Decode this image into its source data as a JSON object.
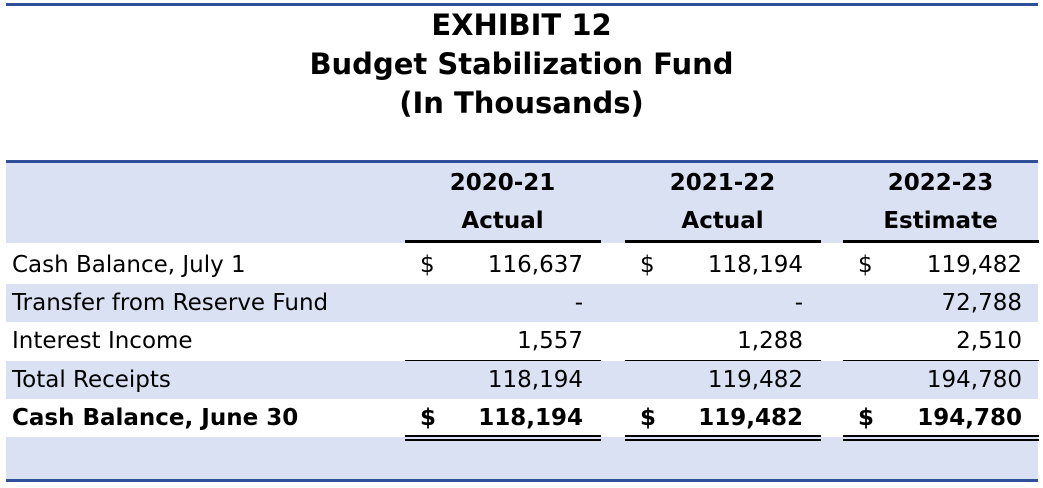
{
  "header": {
    "title": "EXHIBIT 12",
    "subtitle": "Budget Stabilization Fund",
    "units": "(In Thousands)"
  },
  "table": {
    "columns": [
      {
        "year": "2020-21",
        "basis": "Actual"
      },
      {
        "year": "2021-22",
        "basis": "Actual"
      },
      {
        "year": "2022-23",
        "basis": "Estimate"
      }
    ],
    "rows": [
      {
        "label": "Cash Balance, July 1",
        "cells": [
          {
            "symbol": "$",
            "value": "116,637"
          },
          {
            "symbol": "$",
            "value": "118,194"
          },
          {
            "symbol": "$",
            "value": "119,482"
          }
        ]
      },
      {
        "label": "Transfer from Reserve Fund",
        "cells": [
          {
            "value": "-"
          },
          {
            "value": "-"
          },
          {
            "value": "72,788"
          }
        ]
      },
      {
        "label": "Interest Income",
        "cells": [
          {
            "value": "1,557"
          },
          {
            "value": "1,288"
          },
          {
            "value": "2,510"
          }
        ]
      },
      {
        "label": "Total Receipts",
        "cells": [
          {
            "value": "118,194"
          },
          {
            "value": "119,482"
          },
          {
            "value": "194,780"
          }
        ]
      },
      {
        "label": "Cash Balance, June 30",
        "cells": [
          {
            "symbol": "$",
            "value": "118,194"
          },
          {
            "symbol": "$",
            "value": "119,482"
          },
          {
            "symbol": "$",
            "value": "194,780"
          }
        ]
      }
    ]
  }
}
